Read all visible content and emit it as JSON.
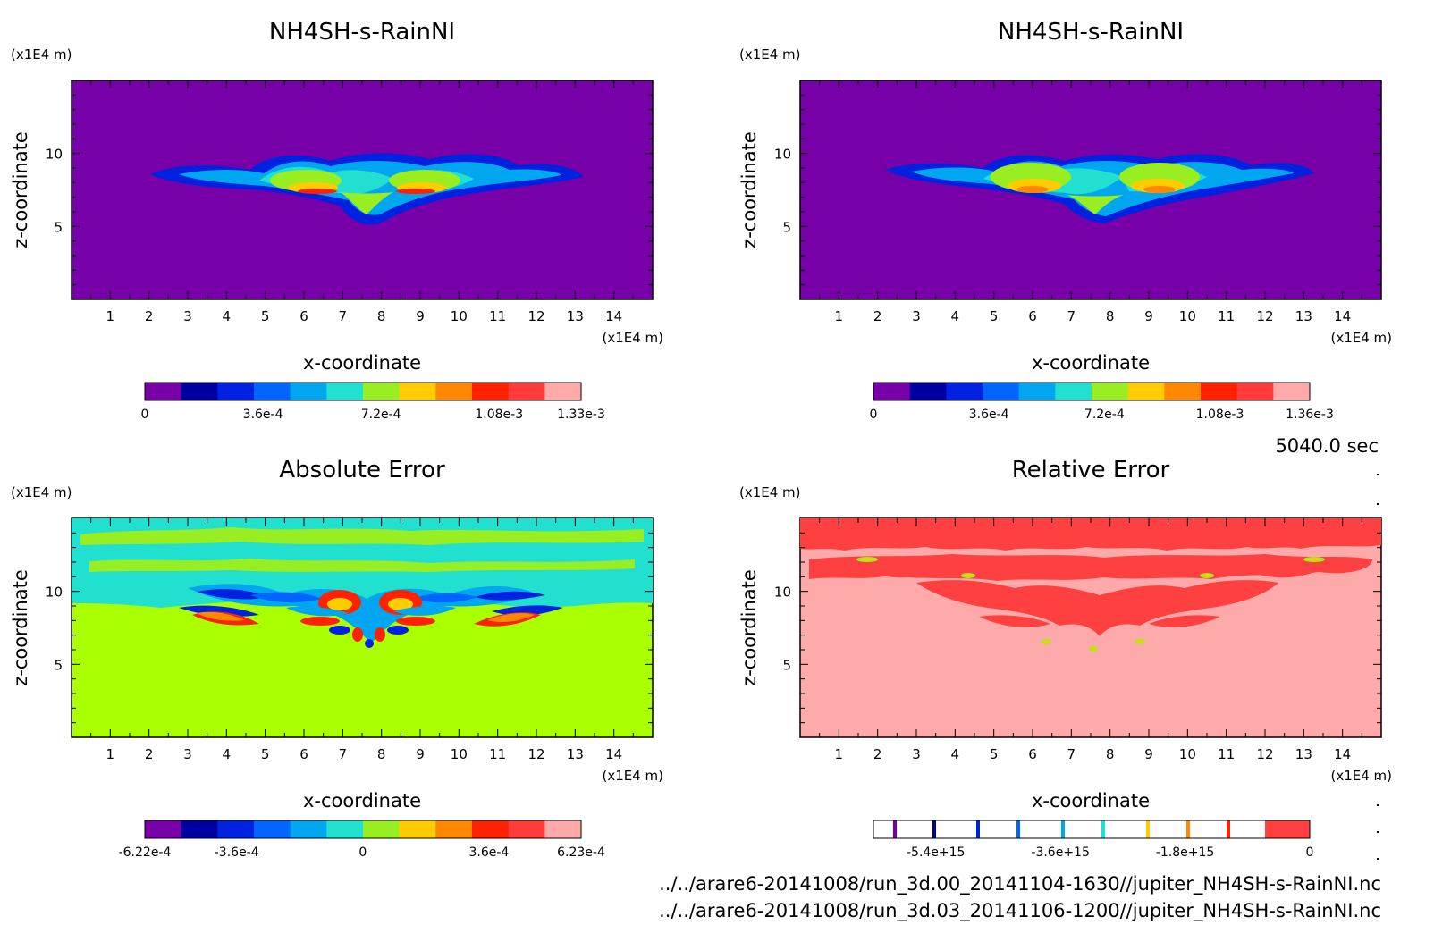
{
  "time_label": "5040.0 sec",
  "footer": {
    "file1": "../../arare6-20141008/run_3d.00_20141104-1630//jupiter_NH4SH-s-RainNI.nc",
    "file2": "../../arare6-20141008/run_3d.03_20141106-1200//jupiter_NH4SH-s-RainNI.nc"
  },
  "colors": {
    "palette": [
      "#7700a8",
      "#0000a0",
      "#0022e0",
      "#0066ff",
      "#00a6f0",
      "#22e0d0",
      "#99ee22",
      "#ffcc00",
      "#ff8800",
      "#ff2200",
      "#ff3b3b",
      "#ffaaaa"
    ],
    "relative_error_fill": "#ff4040",
    "relative_error_background": "#ffaaaa",
    "absolute_error_background": "#aaff00"
  },
  "chart_data": [
    {
      "type": "heatmap",
      "title": "NH4SH-s-RainNI",
      "xlabel": "x-coordinate",
      "ylabel": "z-coordinate",
      "x_unit": "(x1E4 m)",
      "y_unit": "(x1E4 m)",
      "xlim": [
        0,
        15
      ],
      "ylim": [
        0,
        15
      ],
      "x_ticks": [
        "1",
        "2",
        "3",
        "4",
        "5",
        "6",
        "7",
        "8",
        "9",
        "10",
        "11",
        "12",
        "13",
        "14"
      ],
      "y_ticks": [
        "5",
        "10"
      ],
      "colorbar_labels": [
        "0",
        "3.6e-4",
        "7.2e-4",
        "1.08e-3",
        "1.33e-3"
      ],
      "colorbar_min": 0,
      "colorbar_max": 0.00133
    },
    {
      "type": "heatmap",
      "title": "NH4SH-s-RainNI",
      "xlabel": "x-coordinate",
      "ylabel": "z-coordinate",
      "x_unit": "(x1E4 m)",
      "y_unit": "(x1E4 m)",
      "xlim": [
        0,
        15
      ],
      "ylim": [
        0,
        15
      ],
      "x_ticks": [
        "1",
        "2",
        "3",
        "4",
        "5",
        "6",
        "7",
        "8",
        "9",
        "10",
        "11",
        "12",
        "13",
        "14"
      ],
      "y_ticks": [
        "5",
        "10"
      ],
      "colorbar_labels": [
        "0",
        "3.6e-4",
        "7.2e-4",
        "1.08e-3",
        "1.36e-3"
      ],
      "colorbar_min": 0,
      "colorbar_max": 0.00136
    },
    {
      "type": "heatmap",
      "title": "Absolute Error",
      "xlabel": "x-coordinate",
      "ylabel": "z-coordinate",
      "x_unit": "(x1E4 m)",
      "y_unit": "(x1E4 m)",
      "xlim": [
        0,
        15
      ],
      "ylim": [
        0,
        15
      ],
      "x_ticks": [
        "1",
        "2",
        "3",
        "4",
        "5",
        "6",
        "7",
        "8",
        "9",
        "10",
        "11",
        "12",
        "13",
        "14"
      ],
      "y_ticks": [
        "5",
        "10"
      ],
      "colorbar_labels": [
        "-6.22e-4",
        "-3.6e-4",
        "0",
        "3.6e-4",
        "6.23e-4"
      ],
      "colorbar_min": -0.000622,
      "colorbar_max": 0.000623
    },
    {
      "type": "heatmap",
      "title": "Relative Error",
      "xlabel": "x-coordinate",
      "ylabel": "z-coordinate",
      "x_unit": "(x1E4 m)",
      "y_unit": "(x1E4 m)",
      "xlim": [
        0,
        15
      ],
      "ylim": [
        0,
        15
      ],
      "x_ticks": [
        "1",
        "2",
        "3",
        "4",
        "5",
        "6",
        "7",
        "8",
        "9",
        "10",
        "11",
        "12",
        "13",
        "14"
      ],
      "y_ticks": [
        "5",
        "10"
      ],
      "colorbar_labels": [
        "-5.4e+15",
        "-3.6e+15",
        "-1.8e+15",
        "0"
      ],
      "colorbar_min": -6300000000000000.0,
      "colorbar_max": 0
    }
  ]
}
